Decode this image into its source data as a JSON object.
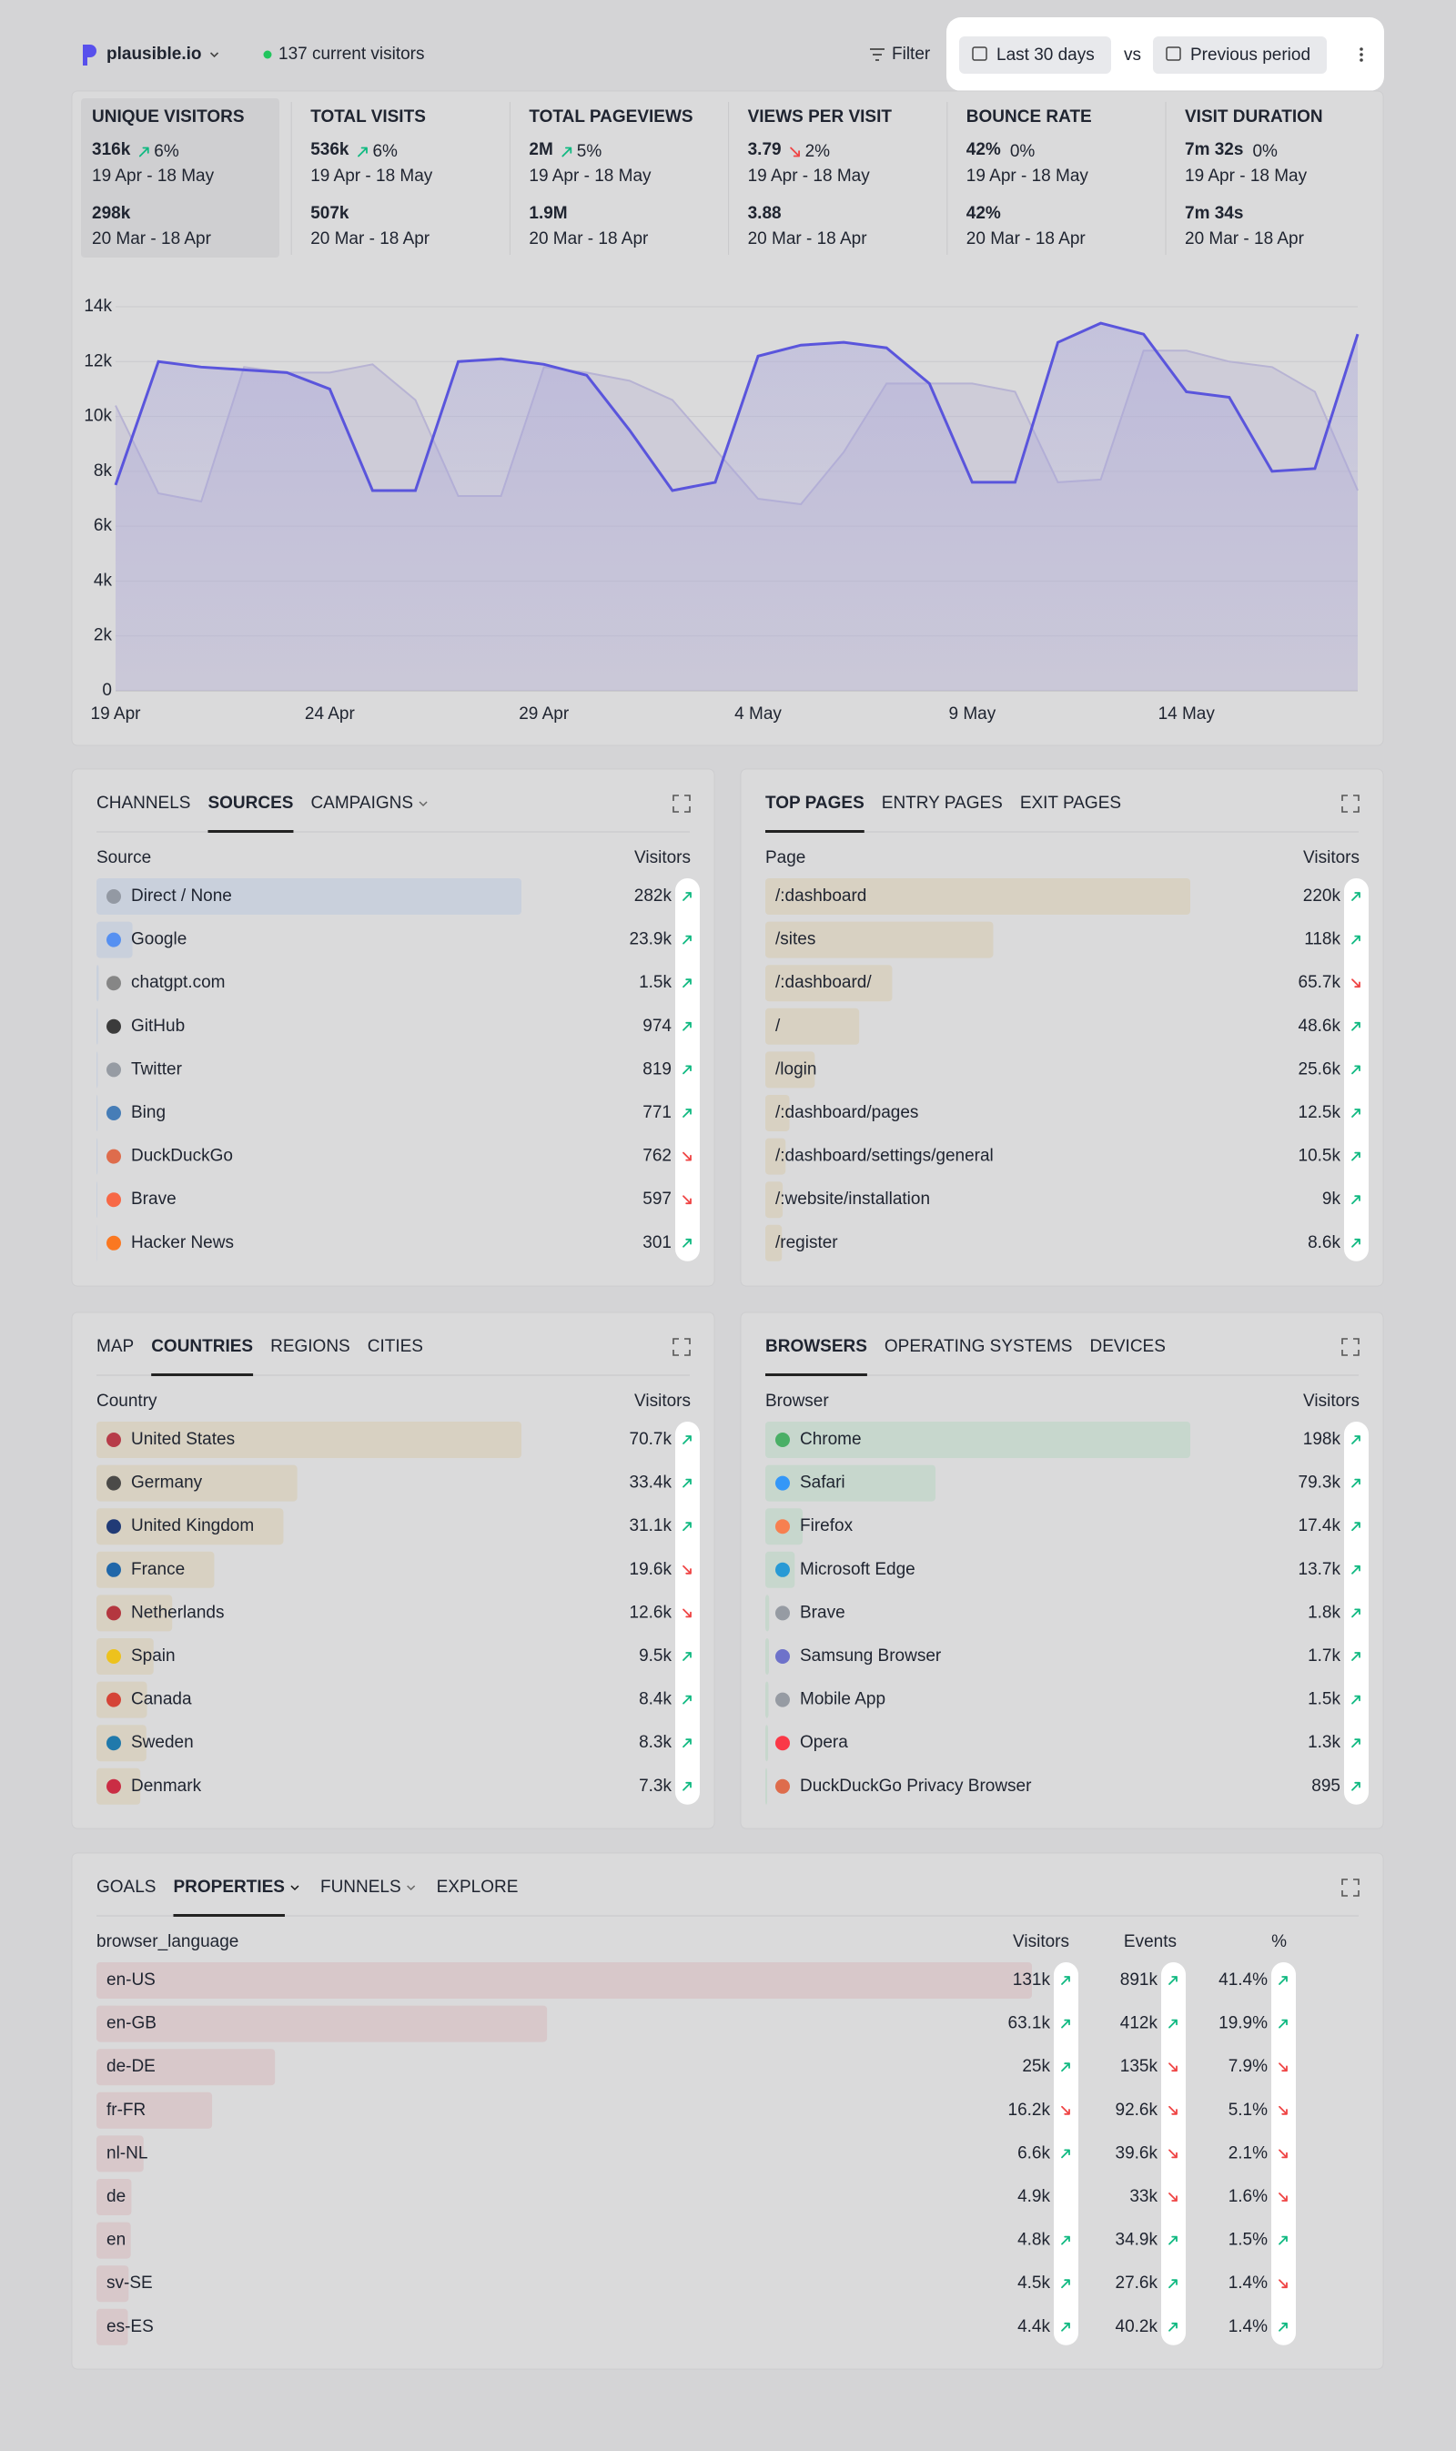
{
  "header": {
    "site": "plausible.io",
    "live": "137 current visitors",
    "filter": "Filter",
    "period": "Last 30 days",
    "vs": "vs",
    "compare": "Previous period"
  },
  "stats": {
    "selected": 0,
    "items": [
      {
        "label": "UNIQUE VISITORS",
        "value": "316k",
        "change": "6%",
        "trend": "up",
        "period": "19 Apr - 18 May",
        "previous": "298k",
        "previous_period": "20 Mar - 18 Apr"
      },
      {
        "label": "TOTAL VISITS",
        "value": "536k",
        "change": "6%",
        "trend": "up",
        "period": "19 Apr - 18 May",
        "previous": "507k",
        "previous_period": "20 Mar - 18 Apr"
      },
      {
        "label": "TOTAL PAGEVIEWS",
        "value": "2M",
        "change": "5%",
        "trend": "up",
        "period": "19 Apr - 18 May",
        "previous": "1.9M",
        "previous_period": "20 Mar - 18 Apr"
      },
      {
        "label": "VIEWS PER VISIT",
        "value": "3.79",
        "change": "2%",
        "trend": "down",
        "period": "19 Apr - 18 May",
        "previous": "3.88",
        "previous_period": "20 Mar - 18 Apr"
      },
      {
        "label": "BOUNCE RATE",
        "value": "42%",
        "change": "0%",
        "trend": null,
        "period": "19 Apr - 18 May",
        "previous": "42%",
        "previous_period": "20 Mar - 18 Apr"
      },
      {
        "label": "VISIT DURATION",
        "value": "7m 32s",
        "change": "0%",
        "trend": null,
        "period": "19 Apr - 18 May",
        "previous": "7m 34s",
        "previous_period": "20 Mar - 18 Apr"
      }
    ]
  },
  "chart": {
    "type": "line",
    "categories": [
      "19 Apr",
      null,
      null,
      null,
      null,
      "24 Apr",
      null,
      null,
      null,
      null,
      "29 Apr",
      null,
      null,
      null,
      null,
      "4 May",
      null,
      null,
      null,
      null,
      "9 May",
      null,
      null,
      null,
      null,
      "14 May",
      null,
      null,
      null,
      null
    ],
    "series": [
      {
        "color": "#5a55dc",
        "values": [
          7500,
          12000,
          11800,
          11700,
          11600,
          11000,
          7300,
          7300,
          12000,
          12100,
          11900,
          11500,
          9500,
          7300,
          7600,
          12200,
          12600,
          12700,
          12500,
          11200,
          7600,
          7600,
          12700,
          13400,
          13000,
          10900,
          10700,
          8000,
          8100,
          13000
        ]
      },
      {
        "color": "#b7b3d3",
        "values": [
          10400,
          7200,
          6900,
          11800,
          11600,
          11600,
          11900,
          10600,
          7100,
          7100,
          11800,
          11600,
          11300,
          10600,
          8800,
          7000,
          6800,
          8700,
          11200,
          11200,
          11200,
          10900,
          7600,
          7700,
          12400,
          12400,
          12000,
          11800,
          10900,
          7300
        ]
      }
    ],
    "ylim": [
      0,
      14000
    ],
    "yticks": [
      0,
      {
        "value": 2000,
        "label": "2k"
      },
      {
        "value": 4000,
        "label": "4k"
      },
      {
        "value": 6000,
        "label": "6k"
      },
      {
        "value": 8000,
        "label": "8k"
      },
      {
        "value": 10000,
        "label": "10k"
      },
      {
        "value": 12000,
        "label": "12k"
      },
      {
        "value": 14000,
        "label": "14k"
      }
    ],
    "grid": true
  },
  "panels": [
    {
      "tabs": [
        "CHANNELS",
        "SOURCES",
        "CAMPAIGNS"
      ],
      "active": 1,
      "menus": [
        2
      ],
      "columns": [
        "Source",
        "Visitors"
      ],
      "bar_color": "#c9d0dc",
      "rows": [
        {
          "name": "Direct / None",
          "icon": "#8a8f99",
          "cells": [
            {
              "text": "282k",
              "trend": "up"
            }
          ]
        },
        {
          "name": "Google",
          "icon": "#4285f4",
          "cells": [
            {
              "text": "23.9k",
              "trend": "up"
            }
          ]
        },
        {
          "name": "chatgpt.com",
          "icon": "#777777",
          "cells": [
            {
              "text": "1.5k",
              "trend": "up"
            }
          ]
        },
        {
          "name": "GitHub",
          "icon": "#1f1f1f",
          "cells": [
            {
              "text": "974",
              "trend": "up"
            }
          ]
        },
        {
          "name": "Twitter",
          "icon": "#8a8f99",
          "cells": [
            {
              "text": "819",
              "trend": "up"
            }
          ]
        },
        {
          "name": "Bing",
          "icon": "#2b6cb0",
          "cells": [
            {
              "text": "771",
              "trend": "up"
            }
          ]
        },
        {
          "name": "DuckDuckGo",
          "icon": "#de5833",
          "cells": [
            {
              "text": "762",
              "trend": "down"
            }
          ]
        },
        {
          "name": "Brave",
          "icon": "#fb542b",
          "cells": [
            {
              "text": "597",
              "trend": "down"
            }
          ]
        },
        {
          "name": "Hacker News",
          "icon": "#ff6600",
          "cells": [
            {
              "text": "301",
              "trend": "up"
            }
          ]
        }
      ]
    },
    {
      "tabs": [
        "TOP PAGES",
        "ENTRY PAGES",
        "EXIT PAGES"
      ],
      "active": 0,
      "menus": [],
      "columns": [
        "Page",
        "Visitors"
      ],
      "bar_color": "#d8d1c2",
      "rows": [
        {
          "name": "/:dashboard",
          "icon": null,
          "cells": [
            {
              "text": "220k",
              "trend": "up"
            }
          ]
        },
        {
          "name": "/sites",
          "icon": null,
          "cells": [
            {
              "text": "118k",
              "trend": "up"
            }
          ]
        },
        {
          "name": "/:dashboard/",
          "icon": null,
          "cells": [
            {
              "text": "65.7k",
              "trend": "down"
            }
          ]
        },
        {
          "name": "/",
          "icon": null,
          "cells": [
            {
              "text": "48.6k",
              "trend": "up"
            }
          ]
        },
        {
          "name": "/login",
          "icon": null,
          "cells": [
            {
              "text": "25.6k",
              "trend": "up"
            }
          ]
        },
        {
          "name": "/:dashboard/pages",
          "icon": null,
          "cells": [
            {
              "text": "12.5k",
              "trend": "up"
            }
          ]
        },
        {
          "name": "/:dashboard/settings/general",
          "icon": null,
          "cells": [
            {
              "text": "10.5k",
              "trend": "up"
            }
          ]
        },
        {
          "name": "/:website/installation",
          "icon": null,
          "cells": [
            {
              "text": "9k",
              "trend": "up"
            }
          ]
        },
        {
          "name": "/register",
          "icon": null,
          "cells": [
            {
              "text": "8.6k",
              "trend": "up"
            }
          ]
        }
      ]
    },
    {
      "tabs": [
        "MAP",
        "COUNTRIES",
        "REGIONS",
        "CITIES"
      ],
      "active": 1,
      "menus": [],
      "columns": [
        "Country",
        "Visitors"
      ],
      "bar_color": "#d8d1c2",
      "rows": [
        {
          "name": "United States",
          "icon": "#b22234",
          "cells": [
            {
              "text": "70.7k",
              "trend": "up"
            }
          ]
        },
        {
          "name": "Germany",
          "icon": "#333333",
          "cells": [
            {
              "text": "33.4k",
              "trend": "up"
            }
          ]
        },
        {
          "name": "United Kingdom",
          "icon": "#012169",
          "cells": [
            {
              "text": "31.1k",
              "trend": "up"
            }
          ]
        },
        {
          "name": "France",
          "icon": "#0055a4",
          "cells": [
            {
              "text": "19.6k",
              "trend": "down"
            }
          ]
        },
        {
          "name": "Netherlands",
          "icon": "#ae1c28",
          "cells": [
            {
              "text": "12.6k",
              "trend": "down"
            }
          ]
        },
        {
          "name": "Spain",
          "icon": "#f1bf00",
          "cells": [
            {
              "text": "9.5k",
              "trend": "up"
            }
          ]
        },
        {
          "name": "Canada",
          "icon": "#d52b1e",
          "cells": [
            {
              "text": "8.4k",
              "trend": "up"
            }
          ]
        },
        {
          "name": "Sweden",
          "icon": "#006aa7",
          "cells": [
            {
              "text": "8.3k",
              "trend": "up"
            }
          ]
        },
        {
          "name": "Denmark",
          "icon": "#c8102e",
          "cells": [
            {
              "text": "7.3k",
              "trend": "up"
            }
          ]
        }
      ]
    },
    {
      "tabs": [
        "BROWSERS",
        "OPERATING SYSTEMS",
        "DEVICES"
      ],
      "active": 0,
      "menus": [],
      "columns": [
        "Browser",
        "Visitors"
      ],
      "bar_color": "#c7d7cd",
      "rows": [
        {
          "name": "Chrome",
          "icon": "#34a853",
          "cells": [
            {
              "text": "198k",
              "trend": "up"
            }
          ]
        },
        {
          "name": "Safari",
          "icon": "#1a8cff",
          "cells": [
            {
              "text": "79.3k",
              "trend": "up"
            }
          ]
        },
        {
          "name": "Firefox",
          "icon": "#ff7139",
          "cells": [
            {
              "text": "17.4k",
              "trend": "up"
            }
          ]
        },
        {
          "name": "Microsoft Edge",
          "icon": "#0c8fd6",
          "cells": [
            {
              "text": "13.7k",
              "trend": "up"
            }
          ]
        },
        {
          "name": "Brave",
          "icon": "#8a8f99",
          "cells": [
            {
              "text": "1.8k",
              "trend": "up"
            }
          ]
        },
        {
          "name": "Samsung Browser",
          "icon": "#5b5fc7",
          "cells": [
            {
              "text": "1.7k",
              "trend": "up"
            }
          ]
        },
        {
          "name": "Mobile App",
          "icon": "#8a8f99",
          "cells": [
            {
              "text": "1.5k",
              "trend": "up"
            }
          ]
        },
        {
          "name": "Opera",
          "icon": "#ff1b2d",
          "cells": [
            {
              "text": "1.3k",
              "trend": "up"
            }
          ]
        },
        {
          "name": "DuckDuckGo Privacy Browser",
          "icon": "#de5833",
          "cells": [
            {
              "text": "895",
              "trend": "up"
            }
          ]
        }
      ]
    },
    {
      "tabs": [
        "GOALS",
        "PROPERTIES",
        "FUNNELS",
        "EXPLORE"
      ],
      "active": 1,
      "menus": [
        1,
        2
      ],
      "columns": [
        "browser_language",
        "Visitors",
        "Events",
        "%"
      ],
      "bar_color": "#d8c8ca",
      "rows": [
        {
          "name": "en-US",
          "icon": null,
          "cells": [
            {
              "text": "131k",
              "trend": "up"
            },
            {
              "text": "891k",
              "trend": "up"
            },
            {
              "text": "41.4%",
              "trend": "up"
            }
          ]
        },
        {
          "name": "en-GB",
          "icon": null,
          "cells": [
            {
              "text": "63.1k",
              "trend": "up"
            },
            {
              "text": "412k",
              "trend": "up"
            },
            {
              "text": "19.9%",
              "trend": "up"
            }
          ]
        },
        {
          "name": "de-DE",
          "icon": null,
          "cells": [
            {
              "text": "25k",
              "trend": "up"
            },
            {
              "text": "135k",
              "trend": "down"
            },
            {
              "text": "7.9%",
              "trend": "down"
            }
          ]
        },
        {
          "name": "fr-FR",
          "icon": null,
          "cells": [
            {
              "text": "16.2k",
              "trend": "down"
            },
            {
              "text": "92.6k",
              "trend": "down"
            },
            {
              "text": "5.1%",
              "trend": "down"
            }
          ]
        },
        {
          "name": "nl-NL",
          "icon": null,
          "cells": [
            {
              "text": "6.6k",
              "trend": "up"
            },
            {
              "text": "39.6k",
              "trend": "down"
            },
            {
              "text": "2.1%",
              "trend": "down"
            }
          ]
        },
        {
          "name": "de",
          "icon": null,
          "cells": [
            {
              "text": "4.9k",
              "trend": null
            },
            {
              "text": "33k",
              "trend": "down"
            },
            {
              "text": "1.6%",
              "trend": "down"
            }
          ]
        },
        {
          "name": "en",
          "icon": null,
          "cells": [
            {
              "text": "4.8k",
              "trend": "up"
            },
            {
              "text": "34.9k",
              "trend": "up"
            },
            {
              "text": "1.5%",
              "trend": "up"
            }
          ]
        },
        {
          "name": "sv-SE",
          "icon": null,
          "cells": [
            {
              "text": "4.5k",
              "trend": "up"
            },
            {
              "text": "27.6k",
              "trend": "up"
            },
            {
              "text": "1.4%",
              "trend": "down"
            }
          ]
        },
        {
          "name": "es-ES",
          "icon": null,
          "cells": [
            {
              "text": "4.4k",
              "trend": "up"
            },
            {
              "text": "40.2k",
              "trend": "up"
            },
            {
              "text": "1.4%",
              "trend": "up"
            }
          ]
        }
      ]
    }
  ]
}
